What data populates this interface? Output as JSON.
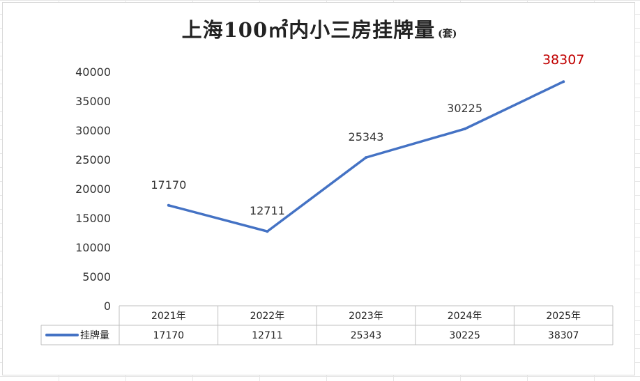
{
  "title": "上海100㎡内小三房挂牌量",
  "title_unit": "(套)",
  "colors": {
    "series": "#4472c4",
    "highlight_label": "#c00000",
    "table_border": "#bfbfbf"
  },
  "chart_data": {
    "type": "line",
    "title": "上海100㎡内小三房挂牌量(套)",
    "categories": [
      "2021年",
      "2022年",
      "2023年",
      "2024年",
      "2025年"
    ],
    "series": [
      {
        "name": "挂牌量",
        "values": [
          17170,
          12711,
          25343,
          30225,
          38307
        ]
      }
    ],
    "y_ticks": [
      "0",
      "5000",
      "10000",
      "15000",
      "20000",
      "25000",
      "30000",
      "35000",
      "40000"
    ],
    "ylim": [
      0,
      40000
    ],
    "xlabel": "",
    "ylabel": "",
    "grid": false,
    "legend": "data-table",
    "data_labels": [
      "17170",
      "12711",
      "25343",
      "30225",
      "38307"
    ],
    "highlight_last_label": true
  }
}
